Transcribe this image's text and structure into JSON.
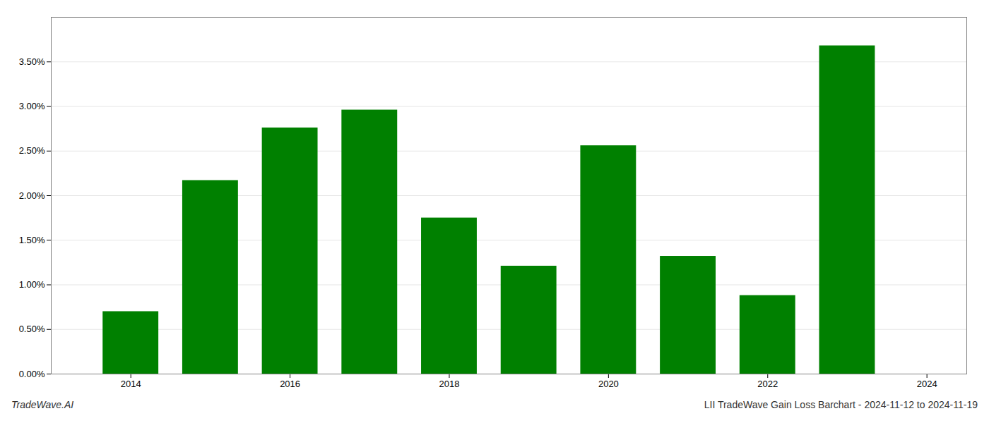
{
  "chart_data": {
    "type": "bar",
    "x": [
      2014,
      2015,
      2016,
      2017,
      2018,
      2019,
      2020,
      2021,
      2022,
      2023
    ],
    "values": [
      0.007,
      0.0217,
      0.0276,
      0.0296,
      0.0175,
      0.0121,
      0.0256,
      0.0132,
      0.0088,
      0.0368
    ],
    "color": "#008000",
    "xlim": [
      2013.0,
      2024.5
    ],
    "xticks": [
      2014,
      2016,
      2018,
      2020,
      2022,
      2024
    ],
    "ylim": [
      0,
      0.04
    ],
    "yticks": [
      {
        "value": 0.0,
        "label": "0.00%"
      },
      {
        "value": 0.005,
        "label": "0.50%"
      },
      {
        "value": 0.01,
        "label": "1.00%"
      },
      {
        "value": 0.015,
        "label": "1.50%"
      },
      {
        "value": 0.02,
        "label": "2.00%"
      },
      {
        "value": 0.025,
        "label": "2.50%"
      },
      {
        "value": 0.03,
        "label": "3.00%"
      },
      {
        "value": 0.035,
        "label": "3.50%"
      }
    ],
    "grid": true,
    "annotations": [
      "TradeWave.AI",
      "LII TradeWave Gain Loss Barchart - 2024-11-12 to 2024-11-19"
    ]
  }
}
